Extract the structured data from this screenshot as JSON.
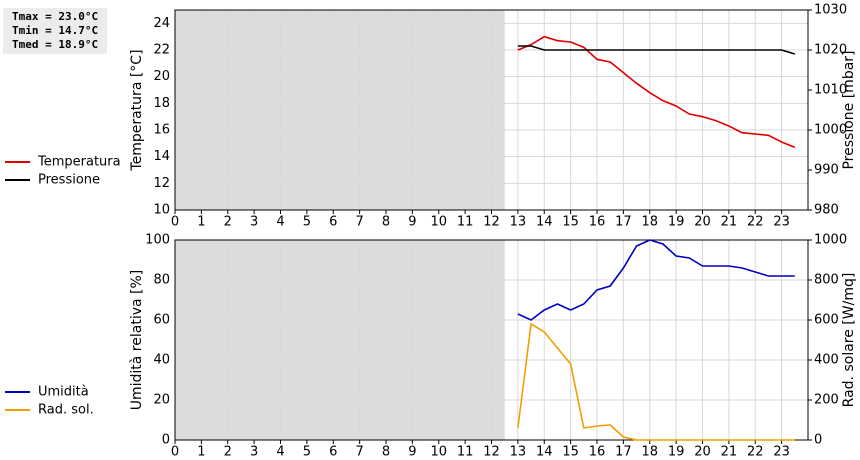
{
  "summary": [
    "Tmax = 23.0°C",
    "Tmin = 14.7°C",
    "Tmed = 18.9°C"
  ],
  "chart_data": [
    {
      "type": "line",
      "ylabel": "Temperatura [°C]",
      "y2label": "Pressione [mbar]",
      "x": [
        13,
        13.5,
        14,
        14.5,
        15,
        15.5,
        16,
        16.5,
        17,
        17.5,
        18,
        18.5,
        19,
        19.5,
        20,
        20.5,
        21,
        21.5,
        22,
        22.5,
        23,
        23.5
      ],
      "series": [
        {
          "name": "Temperatura",
          "color": "#e00000",
          "values": [
            22.0,
            22.4,
            23.0,
            22.7,
            22.6,
            22.2,
            21.3,
            21.1,
            20.3,
            19.5,
            18.8,
            18.2,
            17.8,
            17.2,
            17.0,
            16.7,
            16.3,
            15.8,
            15.7,
            15.6,
            15.1,
            14.7
          ]
        },
        {
          "name": "Pressione",
          "color": "#000000",
          "axis": "y2",
          "values": [
            1021,
            1021,
            1020,
            1020,
            1020,
            1020,
            1020,
            1020,
            1020,
            1020,
            1020,
            1020,
            1020,
            1020,
            1020,
            1020,
            1020,
            1020,
            1020,
            1020,
            1020,
            1019
          ]
        }
      ],
      "xlim": [
        0,
        24
      ],
      "xticks": [
        0,
        1,
        2,
        3,
        4,
        5,
        6,
        7,
        8,
        9,
        10,
        11,
        12,
        13,
        14,
        15,
        16,
        17,
        18,
        19,
        20,
        21,
        22,
        23
      ],
      "ylim": [
        10,
        25
      ],
      "yticks": [
        10,
        12,
        14,
        16,
        18,
        20,
        22,
        24
      ],
      "y2lim": [
        980,
        1030
      ],
      "y2ticks": [
        980,
        990,
        1000,
        1010,
        1020,
        1030
      ],
      "shaded_xrange": [
        0,
        12.5
      ],
      "grid": true
    },
    {
      "type": "line",
      "ylabel": "Umidità relativa [%]",
      "y2label": "Rad. solare [W/mq]",
      "x": [
        13,
        13.5,
        14,
        14.5,
        15,
        15.5,
        16,
        16.5,
        17,
        17.5,
        18,
        18.5,
        19,
        19.5,
        20,
        20.5,
        21,
        21.5,
        22,
        22.5,
        23,
        23.5
      ],
      "series": [
        {
          "name": "Umidità",
          "color": "#0000c0",
          "values": [
            63,
            60,
            65,
            68,
            65,
            68,
            75,
            77,
            86,
            97,
            100,
            98,
            92,
            91,
            87,
            87,
            87,
            86,
            84,
            82,
            82,
            82
          ]
        },
        {
          "name": "Rad. sol.",
          "color": "#f0a000",
          "axis": "y2",
          "values": [
            60,
            580,
            540,
            460,
            380,
            60,
            70,
            75,
            15,
            0,
            0,
            0,
            0,
            0,
            0,
            0,
            0,
            0,
            0,
            0,
            0,
            0
          ]
        }
      ],
      "xlim": [
        0,
        24
      ],
      "xticks": [
        0,
        1,
        2,
        3,
        4,
        5,
        6,
        7,
        8,
        9,
        10,
        11,
        12,
        13,
        14,
        15,
        16,
        17,
        18,
        19,
        20,
        21,
        22,
        23
      ],
      "ylim": [
        0,
        100
      ],
      "yticks": [
        0,
        20,
        40,
        60,
        80,
        100
      ],
      "y2lim": [
        0,
        1000
      ],
      "y2ticks": [
        0,
        200,
        400,
        600,
        800,
        1000
      ],
      "shaded_xrange": [
        0,
        12.5
      ],
      "grid": true
    }
  ]
}
